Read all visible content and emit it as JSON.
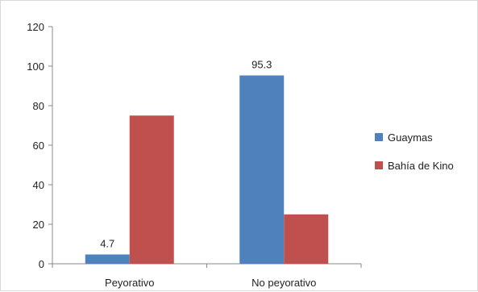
{
  "chart_data": {
    "type": "bar",
    "categories": [
      "Peyorativo",
      "No peyorativo"
    ],
    "series": [
      {
        "name": "Guaymas",
        "values": [
          4.7,
          95.3
        ],
        "color": "#4F81BD",
        "data_labels": [
          "4.7",
          "95.3"
        ]
      },
      {
        "name": "Bahía de Kino",
        "values": [
          75,
          25
        ],
        "color": "#C0504D",
        "data_labels": [
          "",
          ""
        ]
      }
    ],
    "title": "",
    "xlabel": "",
    "ylabel": "",
    "ylim": [
      0,
      120
    ],
    "yticks": [
      0,
      20,
      40,
      60,
      80,
      100,
      120
    ],
    "grid": false,
    "legend_position": "right"
  }
}
